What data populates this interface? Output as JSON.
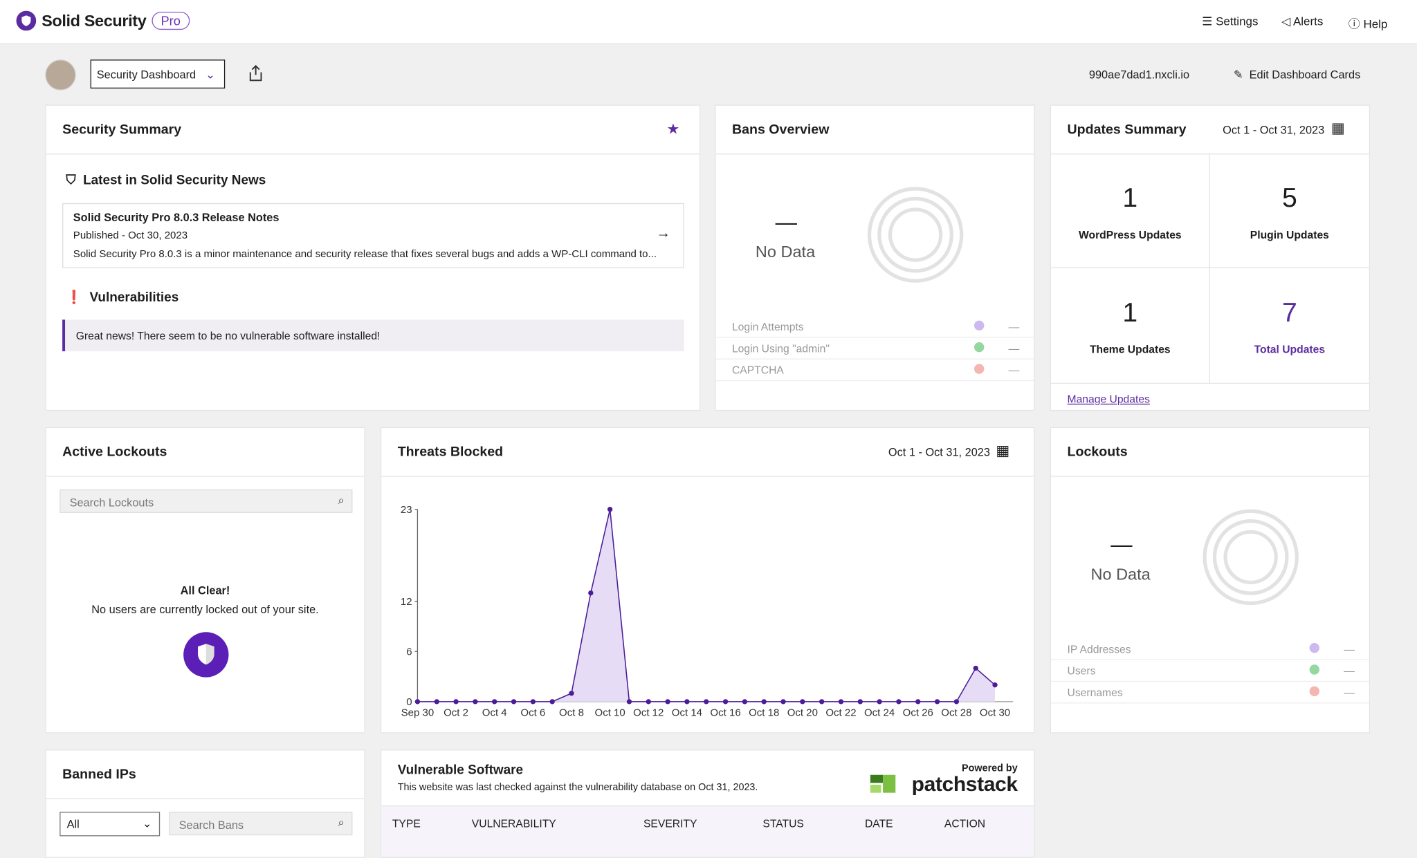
{
  "header": {
    "brand": "Solid Security",
    "badge": "Pro",
    "nav": [
      "Settings",
      "Alerts",
      "Help"
    ]
  },
  "toolbar": {
    "dashboard_select": "Security Dashboard",
    "host": "990ae7dad1.nxcli.io",
    "edit": "Edit Dashboard Cards"
  },
  "security_summary": {
    "title": "Security Summary",
    "news_heading": "Latest in Solid Security News",
    "news": {
      "title": "Solid Security Pro 8.0.3 Release Notes",
      "published": "Published - Oct 30, 2023",
      "excerpt": "Solid Security Pro 8.0.3 is a minor maintenance and security release that fixes several bugs and adds a WP-CLI command to..."
    },
    "vuln_heading": "Vulnerabilities",
    "vuln_message": "Great news! There seem to be no vulnerable software installed!"
  },
  "bans_overview": {
    "title": "Bans Overview",
    "empty_dash": "—",
    "empty": "No Data",
    "legend": [
      {
        "label": "Login Attempts",
        "value": "—"
      },
      {
        "label": "Login Using \"admin\"",
        "value": "—"
      },
      {
        "label": "CAPTCHA",
        "value": "—"
      }
    ]
  },
  "updates_summary": {
    "title": "Updates Summary",
    "date_range": "Oct 1 - Oct 31, 2023",
    "cells": [
      {
        "value": 1,
        "label": "WordPress Updates"
      },
      {
        "value": 5,
        "label": "Plugin Updates"
      },
      {
        "value": 1,
        "label": "Theme Updates"
      },
      {
        "value": 7,
        "label": "Total Updates"
      }
    ],
    "link": "Manage Updates"
  },
  "active_lockouts": {
    "title": "Active Lockouts",
    "search_placeholder": "Search Lockouts",
    "clear_title": "All Clear!",
    "clear_text": "No users are currently locked out of your site."
  },
  "chart_data": {
    "type": "area",
    "title": "Threats Blocked",
    "date_range": "Oct 1 - Oct 31, 2023",
    "categories": [
      "Sep 30",
      null,
      "Oct 2",
      null,
      "Oct 4",
      null,
      "Oct 6",
      null,
      "Oct 8",
      null,
      "Oct 10",
      null,
      "Oct 12",
      null,
      "Oct 14",
      null,
      "Oct 16",
      null,
      "Oct 18",
      null,
      "Oct 20",
      null,
      "Oct 22",
      null,
      "Oct 24",
      null,
      "Oct 26",
      null,
      "Oct 28",
      null,
      "Oct 30"
    ],
    "values": [
      0,
      0,
      0,
      0,
      0,
      0,
      0,
      0,
      1,
      13,
      23,
      0,
      0,
      0,
      0,
      0,
      0,
      0,
      0,
      0,
      0,
      0,
      0,
      0,
      0,
      0,
      0,
      0,
      0,
      4,
      2
    ],
    "color": "#4b1d96",
    "fill": "#e6dcf5",
    "ylim": [
      0,
      23
    ],
    "yticks": [
      0,
      6,
      12,
      23
    ]
  },
  "lockouts": {
    "title": "Lockouts",
    "empty_dash": "—",
    "empty": "No Data",
    "legend": [
      {
        "label": "IP Addresses",
        "value": "—"
      },
      {
        "label": "Users",
        "value": "—"
      },
      {
        "label": "Usernames",
        "value": "—"
      }
    ]
  },
  "banned_ips": {
    "title": "Banned IPs",
    "filter": "All",
    "search_placeholder": "Search Bans"
  },
  "vulnerable_software": {
    "title": "Vulnerable Software",
    "subtitle": "This website was last checked against the vulnerability database on Oct 31, 2023.",
    "powered_by": "Powered by",
    "brand": "patchstack",
    "columns": [
      "TYPE",
      "VULNERABILITY",
      "SEVERITY",
      "STATUS",
      "DATE",
      "ACTION"
    ]
  }
}
